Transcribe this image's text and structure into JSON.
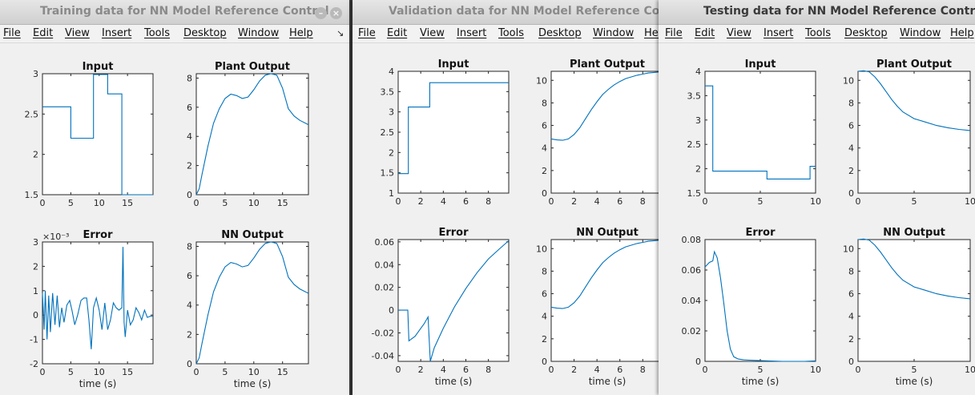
{
  "windows": [
    {
      "id": "training",
      "title": "Training data for NN Model Reference Control",
      "active": false,
      "menu": [
        "File",
        "Edit",
        "View",
        "Insert",
        "Tools",
        "Desktop",
        "Window",
        "Help"
      ],
      "plots": [
        {
          "title": "Input",
          "x_ticks": [
            "0",
            "5",
            "10",
            "15"
          ],
          "y_ticks": [
            "1.5",
            "2",
            "2.5",
            "3"
          ],
          "xlabel": "",
          "exponent": "",
          "chart_data": {
            "type": "line",
            "xlim": [
              0,
              19.5
            ],
            "ylim": [
              1.5,
              3
            ],
            "x": [
              0,
              5,
              5,
              9,
              9,
              11.5,
              11.5,
              14,
              14,
              19.5
            ],
            "y": [
              2.59,
              2.59,
              2.2,
              2.2,
              2.99,
              2.99,
              2.75,
              2.75,
              1.5,
              1.5
            ]
          }
        },
        {
          "title": "Plant Output",
          "x_ticks": [
            "0",
            "5",
            "10",
            "15"
          ],
          "y_ticks": [
            "0",
            "2",
            "4",
            "6",
            "8"
          ],
          "xlabel": "",
          "exponent": "",
          "chart_data": {
            "type": "line",
            "xlim": [
              0,
              19.5
            ],
            "ylim": [
              0,
              8.3
            ],
            "x": [
              0,
              0.5,
              1,
              2,
              3,
              4,
              5,
              6,
              7,
              8,
              9,
              10,
              11,
              12,
              13,
              14,
              15,
              16,
              17,
              18,
              19.5
            ],
            "y": [
              0,
              0.4,
              1.4,
              3.3,
              4.9,
              5.9,
              6.6,
              6.9,
              6.8,
              6.6,
              6.7,
              7.2,
              7.8,
              8.2,
              8.3,
              8.2,
              7.3,
              5.9,
              5.4,
              5.1,
              4.8
            ]
          }
        },
        {
          "title": "Error",
          "x_ticks": [
            "0",
            "5",
            "10",
            "15"
          ],
          "y_ticks": [
            "-2",
            "-1",
            "0",
            "1",
            "2",
            "3"
          ],
          "xlabel": "time (s)",
          "exponent": "×10⁻³",
          "chart_data": {
            "type": "line",
            "xlim": [
              0,
              19.5
            ],
            "ylim": [
              -2,
              3
            ],
            "x": [
              0,
              0.3,
              0.5,
              0.8,
              1.1,
              1.4,
              1.8,
              2.2,
              2.6,
              3,
              3.4,
              3.8,
              4.3,
              4.8,
              5.2,
              5.7,
              6.2,
              6.8,
              7.3,
              7.8,
              8.2,
              8.6,
              9,
              9.5,
              10,
              10.5,
              11,
              11.5,
              12,
              12.5,
              13,
              13.5,
              14,
              14.2,
              14.4,
              14.6,
              15,
              15.5,
              16,
              16.5,
              17,
              17.5,
              18,
              18.5,
              19,
              19.5
            ],
            "y": [
              0.9,
              -0.6,
              1,
              -1,
              0.8,
              -0.7,
              0.9,
              -0.4,
              0.8,
              -0.5,
              0.3,
              -0.3,
              0.4,
              0.6,
              0.2,
              -0.4,
              0,
              0.6,
              0.7,
              0.7,
              -0.2,
              -1.4,
              0.3,
              0.7,
              0.2,
              -0.6,
              0.5,
              -0.6,
              -0.2,
              0.5,
              0.3,
              0.2,
              0.3,
              2.8,
              -0.3,
              -0.9,
              0.2,
              -0.4,
              -0.2,
              0.3,
              0.1,
              -0.2,
              0.2,
              -0.1,
              -0.05,
              -0.05
            ]
          }
        },
        {
          "title": "NN Output",
          "x_ticks": [
            "0",
            "5",
            "10",
            "15"
          ],
          "y_ticks": [
            "0",
            "2",
            "4",
            "6",
            "8"
          ],
          "xlabel": "time (s)",
          "exponent": "",
          "chart_data": {
            "type": "line",
            "xlim": [
              0,
              19.5
            ],
            "ylim": [
              0,
              8.3
            ],
            "x": [
              0,
              0.5,
              1,
              2,
              3,
              4,
              5,
              6,
              7,
              8,
              9,
              10,
              11,
              12,
              13,
              14,
              15,
              16,
              17,
              18,
              19.5
            ],
            "y": [
              0,
              0.4,
              1.4,
              3.3,
              4.9,
              5.9,
              6.6,
              6.9,
              6.8,
              6.6,
              6.7,
              7.2,
              7.8,
              8.2,
              8.3,
              8.2,
              7.3,
              5.9,
              5.4,
              5.1,
              4.8
            ]
          }
        }
      ]
    },
    {
      "id": "validation",
      "title": "Validation data for NN Model Reference Control",
      "active": false,
      "menu": [
        "File",
        "Edit",
        "View",
        "Insert",
        "Tools",
        "Desktop",
        "Window",
        "Help"
      ],
      "plots": [
        {
          "title": "Input",
          "x_ticks": [
            "0",
            "2",
            "4",
            "6",
            "8"
          ],
          "y_ticks": [
            "1",
            "1.5",
            "2",
            "2.5",
            "3",
            "3.5",
            "4"
          ],
          "xlabel": "",
          "exponent": "",
          "chart_data": {
            "type": "line",
            "xlim": [
              0,
              9.8
            ],
            "ylim": [
              1,
              4
            ],
            "x": [
              0,
              0.9,
              0.9,
              2.8,
              2.8,
              9.8
            ],
            "y": [
              1.48,
              1.48,
              3.12,
              3.12,
              3.72,
              3.72
            ]
          }
        },
        {
          "title": "Plant Output",
          "x_ticks": [
            "0",
            "2",
            "4",
            "6",
            "8"
          ],
          "y_ticks": [
            "0",
            "2",
            "4",
            "6",
            "8",
            "10"
          ],
          "xlabel": "",
          "exponent": "",
          "chart_data": {
            "type": "line",
            "xlim": [
              0,
              9.8
            ],
            "ylim": [
              0,
              10.8
            ],
            "x": [
              0,
              0.5,
              1,
              1.5,
              2,
              2.5,
              3,
              3.5,
              4,
              4.5,
              5,
              5.5,
              6,
              6.5,
              7,
              7.5,
              8,
              8.5,
              9,
              9.8
            ],
            "y": [
              4.8,
              4.72,
              4.68,
              4.8,
              5.2,
              5.8,
              6.6,
              7.4,
              8.1,
              8.75,
              9.2,
              9.6,
              9.9,
              10.15,
              10.3,
              10.45,
              10.55,
              10.65,
              10.7,
              10.78
            ]
          }
        },
        {
          "title": "Error",
          "x_ticks": [
            "0",
            "2",
            "4",
            "6",
            "8"
          ],
          "y_ticks": [
            "-0.04",
            "-0.02",
            "0",
            "0.02",
            "0.04",
            "0.06"
          ],
          "xlabel": "time (s)",
          "exponent": "",
          "chart_data": {
            "type": "line",
            "xlim": [
              0,
              9.8
            ],
            "ylim": [
              -0.045,
              0.062
            ],
            "x": [
              0,
              0.85,
              0.95,
              1.5,
              2,
              2.3,
              2.65,
              2.85,
              3.2,
              4,
              5,
              6,
              7,
              8,
              9,
              9.8
            ],
            "y": [
              0,
              0,
              -0.027,
              -0.023,
              -0.016,
              -0.012,
              -0.006,
              -0.045,
              -0.033,
              -0.016,
              0.003,
              0.019,
              0.033,
              0.045,
              0.054,
              0.061
            ]
          }
        },
        {
          "title": "NN Output",
          "x_ticks": [
            "0",
            "2",
            "4",
            "6",
            "8"
          ],
          "y_ticks": [
            "0",
            "2",
            "4",
            "6",
            "8",
            "10"
          ],
          "xlabel": "time (s)",
          "exponent": "",
          "chart_data": {
            "type": "line",
            "xlim": [
              0,
              9.8
            ],
            "ylim": [
              0,
              10.8
            ],
            "x": [
              0,
              0.5,
              1,
              1.5,
              2,
              2.5,
              3,
              3.5,
              4,
              4.5,
              5,
              5.5,
              6,
              6.5,
              7,
              7.5,
              8,
              8.5,
              9,
              9.8
            ],
            "y": [
              4.8,
              4.72,
              4.68,
              4.8,
              5.2,
              5.8,
              6.6,
              7.4,
              8.1,
              8.75,
              9.2,
              9.6,
              9.9,
              10.15,
              10.3,
              10.45,
              10.55,
              10.65,
              10.7,
              10.78
            ]
          }
        }
      ]
    },
    {
      "id": "testing",
      "title": "Testing data for NN Model Reference Control",
      "active": true,
      "menu": [
        "File",
        "Edit",
        "View",
        "Insert",
        "Tools",
        "Desktop",
        "Window",
        "Help"
      ],
      "plots": [
        {
          "title": "Input",
          "x_ticks": [
            "0",
            "5",
            "10"
          ],
          "y_ticks": [
            "1.5",
            "2",
            "2.5",
            "3",
            "3.5",
            "4"
          ],
          "xlabel": "",
          "exponent": "",
          "chart_data": {
            "type": "line",
            "xlim": [
              0,
              10
            ],
            "ylim": [
              1.5,
              4
            ],
            "x": [
              0,
              0.7,
              0.7,
              5.6,
              5.6,
              9.5,
              9.5,
              10
            ],
            "y": [
              3.7,
              3.7,
              1.95,
              1.95,
              1.79,
              1.79,
              2.05,
              2.05
            ]
          }
        },
        {
          "title": "Plant Output",
          "x_ticks": [
            "0",
            "5",
            "10"
          ],
          "y_ticks": [
            "0",
            "2",
            "4",
            "6",
            "8",
            "10"
          ],
          "xlabel": "",
          "exponent": "",
          "chart_data": {
            "type": "line",
            "xlim": [
              0,
              10
            ],
            "ylim": [
              0,
              10.8
            ],
            "x": [
              0,
              0.5,
              1,
              1.5,
              2,
              2.5,
              3,
              3.5,
              4,
              5,
              6,
              7,
              8,
              9,
              10
            ],
            "y": [
              10.8,
              10.85,
              10.75,
              10.3,
              9.7,
              9.0,
              8.3,
              7.7,
              7.2,
              6.6,
              6.3,
              6.0,
              5.8,
              5.65,
              5.55
            ]
          }
        },
        {
          "title": "Error",
          "x_ticks": [
            "0",
            "5",
            "10"
          ],
          "y_ticks": [
            "0",
            "0.02",
            "0.04",
            "0.06",
            "0.08"
          ],
          "xlabel": "time (s)",
          "exponent": "",
          "chart_data": {
            "type": "line",
            "xlim": [
              0,
              10
            ],
            "ylim": [
              0,
              0.08
            ],
            "x": [
              0,
              0.4,
              0.7,
              0.85,
              1.1,
              1.4,
              1.7,
              2,
              2.3,
              2.6,
              3,
              3.5,
              4,
              5,
              6,
              7,
              8,
              9,
              10
            ],
            "y": [
              0.062,
              0.065,
              0.066,
              0.072,
              0.068,
              0.055,
              0.038,
              0.02,
              0.008,
              0.003,
              0.0015,
              0.001,
              0.0008,
              0.0005,
              0.0002,
              0,
              0,
              0,
              0.0003
            ]
          }
        },
        {
          "title": "NN Output",
          "x_ticks": [
            "0",
            "5",
            "10"
          ],
          "y_ticks": [
            "0",
            "2",
            "4",
            "6",
            "8",
            "10"
          ],
          "xlabel": "time (s)",
          "exponent": "",
          "chart_data": {
            "type": "line",
            "xlim": [
              0,
              10
            ],
            "ylim": [
              0,
              10.8
            ],
            "x": [
              0,
              0.5,
              1,
              1.5,
              2,
              2.5,
              3,
              3.5,
              4,
              5,
              6,
              7,
              8,
              9,
              10
            ],
            "y": [
              10.8,
              10.85,
              10.75,
              10.3,
              9.7,
              9.0,
              8.3,
              7.7,
              7.2,
              6.6,
              6.3,
              6.0,
              5.8,
              5.65,
              5.55
            ]
          }
        }
      ]
    }
  ]
}
